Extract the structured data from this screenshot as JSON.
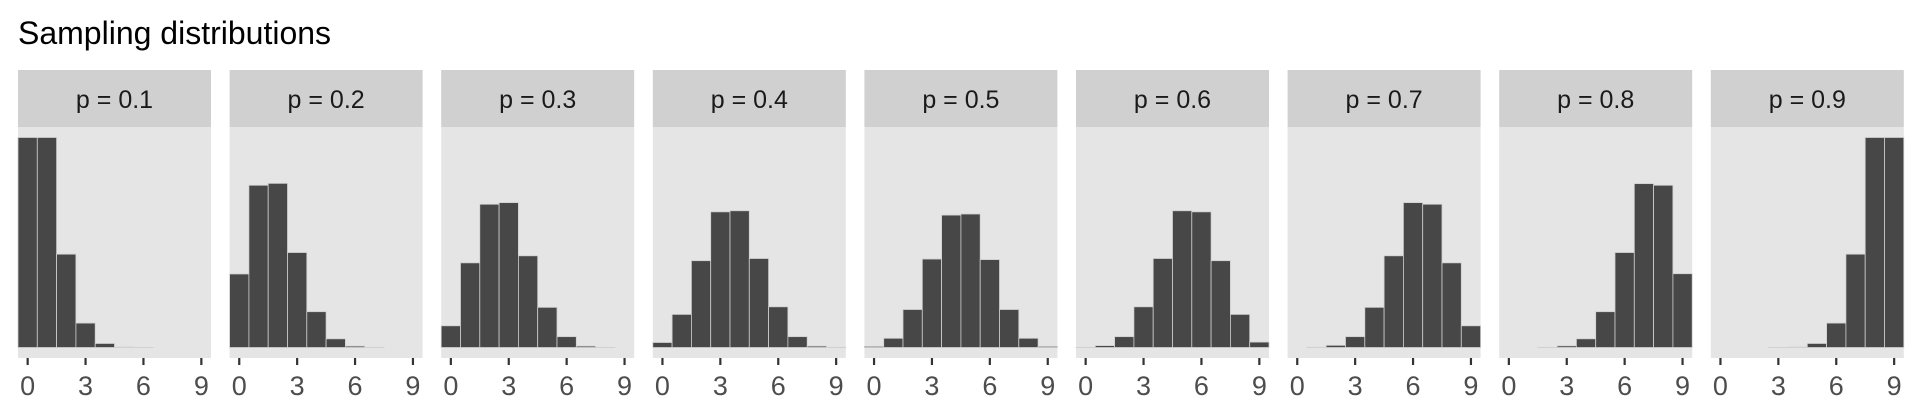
{
  "chart_data": {
    "type": "bar",
    "title": "Sampling distributions",
    "xlabel": "",
    "ylabel": "",
    "facet_layout": "single-row",
    "x_categories": [
      0,
      1,
      2,
      3,
      4,
      5,
      6,
      7,
      8,
      9
    ],
    "xlim": [
      -0.5,
      9.5
    ],
    "x_ticks": [
      0,
      3,
      6,
      9
    ],
    "ylim": [
      0,
      0.387
    ],
    "y_axis_shown": false,
    "grid": false,
    "colors": {
      "bar_fill": "#474747",
      "bar_outline": "#cfcfcf",
      "panel_bg": "#e5e5e5",
      "strip_bg": "#d0d0d0"
    },
    "facets": [
      {
        "label": "p = 0.1",
        "values": [
          0.387,
          0.387,
          0.172,
          0.045,
          0.0074,
          0.0008,
          0.0001,
          0,
          0,
          0
        ]
      },
      {
        "label": "p = 0.2",
        "values": [
          0.1355,
          0.299,
          0.3025,
          0.175,
          0.066,
          0.016,
          0.0025,
          0.0003,
          0,
          0
        ]
      },
      {
        "label": "p = 0.3",
        "values": [
          0.04,
          0.156,
          0.264,
          0.267,
          0.169,
          0.074,
          0.02,
          0.0025,
          0.0003,
          0
        ]
      },
      {
        "label": "p = 0.4",
        "values": [
          0.0092,
          0.061,
          0.16,
          0.25,
          0.252,
          0.164,
          0.075,
          0.02,
          0.0025,
          0.0003
        ]
      },
      {
        "label": "p = 0.5",
        "values": [
          0.002,
          0.017,
          0.07,
          0.163,
          0.244,
          0.246,
          0.162,
          0.07,
          0.017,
          0.002
        ]
      },
      {
        "label": "p = 0.6",
        "values": [
          0.0003,
          0.0035,
          0.02,
          0.075,
          0.164,
          0.252,
          0.25,
          0.16,
          0.061,
          0.01
        ]
      },
      {
        "label": "p = 0.7",
        "values": [
          0,
          0.0004,
          0.004,
          0.02,
          0.074,
          0.169,
          0.267,
          0.264,
          0.156,
          0.04
        ]
      },
      {
        "label": "p = 0.8",
        "values": [
          0,
          0,
          0.0003,
          0.003,
          0.016,
          0.066,
          0.175,
          0.302,
          0.299,
          0.136
        ]
      },
      {
        "label": "p = 0.9",
        "values": [
          0,
          0,
          0,
          0.0001,
          0.0008,
          0.0074,
          0.045,
          0.172,
          0.387,
          0.387
        ]
      }
    ]
  }
}
